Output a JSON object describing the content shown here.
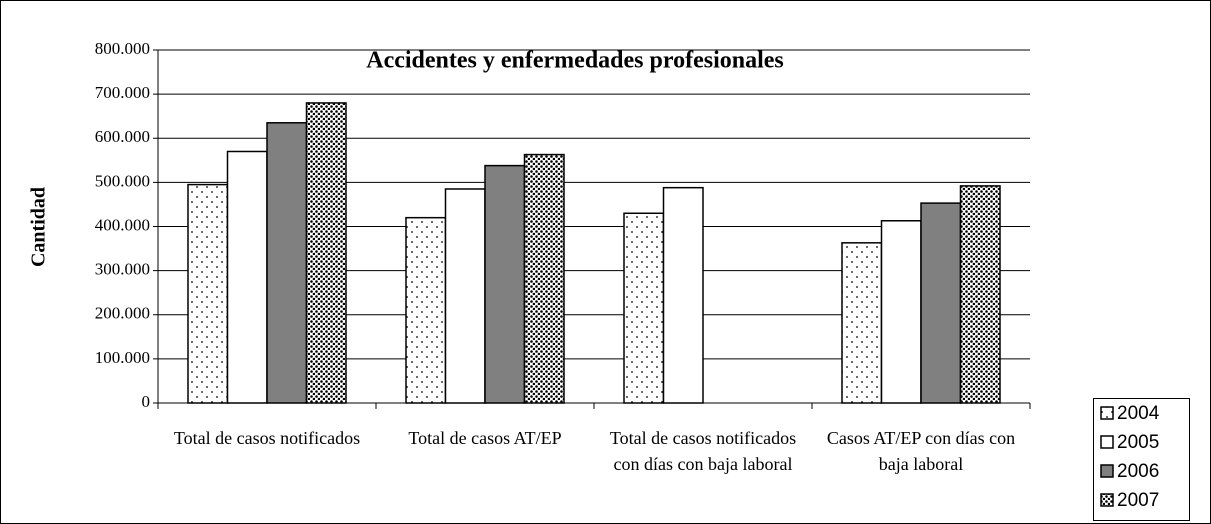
{
  "chart_data": {
    "type": "bar",
    "title": "Accidentes y enfermedades profesionales",
    "y_label": "Cantidad",
    "categories": [
      "Total de casos notificados",
      "Total de casos AT/EP",
      "Total de casos notificados con días con baja laboral",
      "Casos AT/EP con días con baja laboral"
    ],
    "series": [
      {
        "name": "2004",
        "color": "#ffffff",
        "pattern": "sparse-dots",
        "values": [
          495000,
          420000,
          430000,
          363000
        ]
      },
      {
        "name": "2005",
        "color": "#ffffff",
        "pattern": "solid",
        "values": [
          570000,
          485000,
          488000,
          413000
        ]
      },
      {
        "name": "2006",
        "color": "#808080",
        "pattern": "solid",
        "values": [
          635000,
          538000,
          null,
          453000
        ]
      },
      {
        "name": "2007",
        "color": "#000000",
        "pattern": "dense-dots",
        "values": [
          680000,
          563000,
          null,
          492000
        ]
      }
    ],
    "ylim": [
      0,
      800000
    ],
    "yticks": [
      0,
      {
        "value": 100000,
        "label": "100.000"
      },
      {
        "value": 200000,
        "label": "200.000"
      },
      {
        "value": 300000,
        "label": "300.000"
      },
      {
        "value": 400000,
        "label": "400.000"
      },
      {
        "value": 500000,
        "label": "500.000"
      },
      {
        "value": 600000,
        "label": "600.000"
      },
      {
        "value": 700000,
        "label": "700.000"
      },
      {
        "value": 800000,
        "label": "800.000"
      }
    ],
    "grid": true,
    "legend": "bottom-right"
  }
}
